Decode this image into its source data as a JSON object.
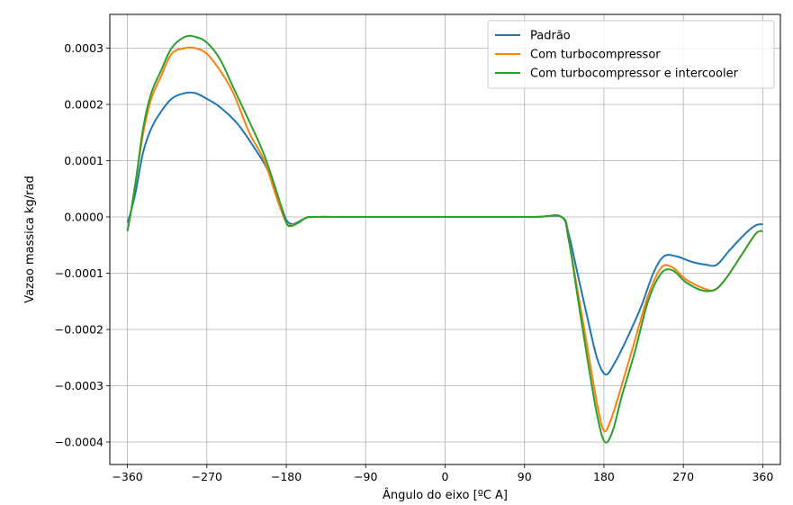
{
  "chart_data": {
    "type": "line",
    "title": "",
    "xlabel": "Ângulo do eixo [ºC A]",
    "ylabel": "Vazao massica kg/rad",
    "xlim": [
      -380,
      380
    ],
    "ylim": [
      -0.00044,
      0.00036
    ],
    "xticks": [
      -360,
      -270,
      -180,
      -90,
      0,
      90,
      180,
      270,
      360
    ],
    "xtick_labels": [
      "−360",
      "−270",
      "−180",
      "−90",
      "0",
      "90",
      "180",
      "270",
      "360"
    ],
    "yticks": [
      -0.0004,
      -0.0003,
      -0.0002,
      -0.0001,
      0.0,
      0.0001,
      0.0002,
      0.0003
    ],
    "ytick_labels": [
      "−0.0004",
      "−0.0003",
      "−0.0002",
      "−0.0001",
      "0.0000",
      "0.0001",
      "0.0002",
      "0.0003"
    ],
    "grid": true,
    "legend_position": "top-right",
    "series": [
      {
        "name": "Padrão",
        "color": "#1f77b4",
        "points": [
          [
            -360,
            -1e-05
          ],
          [
            -356,
            1e-05
          ],
          [
            -350,
            5e-05
          ],
          [
            -343,
            0.00011
          ],
          [
            -335,
            0.00015
          ],
          [
            -325,
            0.00018
          ],
          [
            -310,
            0.00021
          ],
          [
            -295,
            0.00022
          ],
          [
            -283,
            0.00022
          ],
          [
            -270,
            0.00021
          ],
          [
            -255,
            0.000195
          ],
          [
            -235,
            0.000165
          ],
          [
            -215,
            0.00012
          ],
          [
            -200,
            8e-05
          ],
          [
            -186,
            2e-05
          ],
          [
            -180,
            -5e-06
          ],
          [
            -174,
            -1.3e-05
          ],
          [
            -168,
            -1e-05
          ],
          [
            -158,
            -2e-06
          ],
          [
            -150,
            0.0
          ],
          [
            -100,
            0.0
          ],
          [
            0,
            0.0
          ],
          [
            100,
            0.0
          ],
          [
            132,
            0.0
          ],
          [
            140,
            -3e-05
          ],
          [
            150,
            -0.0001
          ],
          [
            160,
            -0.00017
          ],
          [
            172,
            -0.00025
          ],
          [
            182,
            -0.00028
          ],
          [
            192,
            -0.00026
          ],
          [
            205,
            -0.00022
          ],
          [
            222,
            -0.00016
          ],
          [
            236,
            -0.0001
          ],
          [
            248,
            -7e-05
          ],
          [
            262,
            -7e-05
          ],
          [
            280,
            -8e-05
          ],
          [
            296,
            -8.5e-05
          ],
          [
            308,
            -8.5e-05
          ],
          [
            322,
            -6e-05
          ],
          [
            340,
            -3e-05
          ],
          [
            352,
            -1.5e-05
          ],
          [
            360,
            -1.3e-05
          ]
        ]
      },
      {
        "name": "Com turbocompressor",
        "color": "#ff7f0e",
        "points": [
          [
            -360,
            -2.5e-05
          ],
          [
            -356,
            1e-05
          ],
          [
            -350,
            7e-05
          ],
          [
            -342,
            0.00015
          ],
          [
            -333,
            0.00021
          ],
          [
            -322,
            0.00025
          ],
          [
            -310,
            0.00029
          ],
          [
            -295,
            0.0003
          ],
          [
            -283,
            0.0003
          ],
          [
            -270,
            0.00029
          ],
          [
            -255,
            0.00026
          ],
          [
            -240,
            0.00022
          ],
          [
            -222,
            0.00015
          ],
          [
            -205,
            0.0001
          ],
          [
            -190,
            3e-05
          ],
          [
            -180,
            -1e-05
          ],
          [
            -174,
            -1.5e-05
          ],
          [
            -166,
            -1e-05
          ],
          [
            -158,
            -2e-06
          ],
          [
            -150,
            0.0
          ],
          [
            -100,
            0.0
          ],
          [
            0,
            0.0
          ],
          [
            100,
            0.0
          ],
          [
            132,
            0.0
          ],
          [
            140,
            -4e-05
          ],
          [
            150,
            -0.00013
          ],
          [
            160,
            -0.00022
          ],
          [
            172,
            -0.00033
          ],
          [
            180,
            -0.00038
          ],
          [
            188,
            -0.00036
          ],
          [
            200,
            -0.0003
          ],
          [
            215,
            -0.00022
          ],
          [
            230,
            -0.00014
          ],
          [
            245,
            -9e-05
          ],
          [
            258,
            -9e-05
          ],
          [
            272,
            -0.00011
          ],
          [
            290,
            -0.000125
          ],
          [
            305,
            -0.00013
          ],
          [
            318,
            -0.00011
          ],
          [
            335,
            -7e-05
          ],
          [
            352,
            -3e-05
          ],
          [
            360,
            -2.5e-05
          ]
        ]
      },
      {
        "name": "Com turbocompressor e intercooler",
        "color": "#2ca02c",
        "points": [
          [
            -360,
            -2.5e-05
          ],
          [
            -356,
            1e-05
          ],
          [
            -350,
            7e-05
          ],
          [
            -342,
            0.00016
          ],
          [
            -333,
            0.00022
          ],
          [
            -322,
            0.00026
          ],
          [
            -310,
            0.0003
          ],
          [
            -295,
            0.00032
          ],
          [
            -283,
            0.00032
          ],
          [
            -270,
            0.00031
          ],
          [
            -255,
            0.00028
          ],
          [
            -240,
            0.00023
          ],
          [
            -222,
            0.00017
          ],
          [
            -205,
            0.00011
          ],
          [
            -190,
            4e-05
          ],
          [
            -180,
            -1e-05
          ],
          [
            -174,
            -1.6e-05
          ],
          [
            -166,
            -1e-05
          ],
          [
            -158,
            -2e-06
          ],
          [
            -150,
            0.0
          ],
          [
            -100,
            0.0
          ],
          [
            0,
            0.0
          ],
          [
            100,
            0.0
          ],
          [
            132,
            0.0
          ],
          [
            140,
            -4e-05
          ],
          [
            150,
            -0.00014
          ],
          [
            160,
            -0.00024
          ],
          [
            172,
            -0.00035
          ],
          [
            181,
            -0.0004
          ],
          [
            190,
            -0.00038
          ],
          [
            200,
            -0.00032
          ],
          [
            215,
            -0.00024
          ],
          [
            230,
            -0.00015
          ],
          [
            245,
            -0.0001
          ],
          [
            258,
            -9.5e-05
          ],
          [
            272,
            -0.000115
          ],
          [
            290,
            -0.00013
          ],
          [
            305,
            -0.00013
          ],
          [
            318,
            -0.00011
          ],
          [
            335,
            -7e-05
          ],
          [
            352,
            -3e-05
          ],
          [
            360,
            -2.5e-05
          ]
        ]
      }
    ]
  }
}
